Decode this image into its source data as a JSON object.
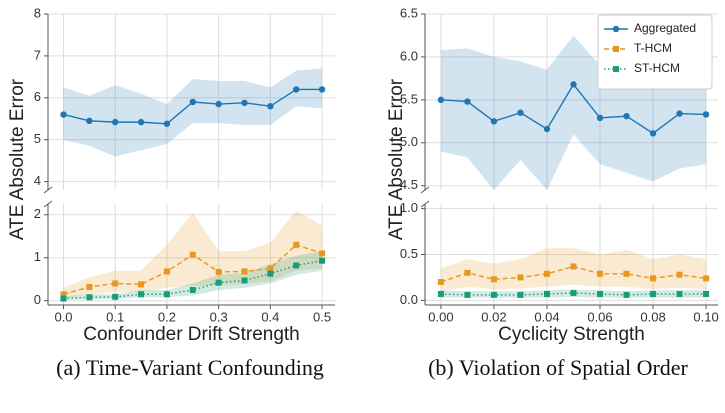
{
  "chart_data": [
    {
      "type": "line",
      "caption": "(a) Time-Variant Confounding",
      "xlabel": "Confounder Drift Strength",
      "ylabel": "ATE Absolute Error",
      "x": [
        0,
        0.05,
        0.1,
        0.15,
        0.2,
        0.25,
        0.3,
        0.35,
        0.4,
        0.45,
        0.5
      ],
      "xlim": [
        -0.03,
        0.525
      ],
      "xticks": [
        {
          "value": 0,
          "label": "0.0"
        },
        0.1,
        0.2,
        0.3,
        0.4,
        0.5
      ],
      "panels": [
        {
          "ylim": [
            3.8,
            8
          ],
          "yticks": [
            4,
            5,
            6,
            7,
            8
          ]
        },
        {
          "ylim": [
            -0.1,
            2.25
          ],
          "yticks": [
            0,
            1,
            2
          ]
        }
      ],
      "grid": true,
      "series": [
        {
          "color": "#1f77b4",
          "marker": "circle",
          "linestyle": "solid",
          "panel": 0,
          "values": [
            5.6,
            5.45,
            5.42,
            5.42,
            5.38,
            5.9,
            5.85,
            5.88,
            5.8,
            6.2,
            6.2
          ],
          "lower": [
            5.0,
            4.85,
            4.6,
            4.75,
            4.9,
            5.4,
            5.4,
            5.35,
            5.35,
            5.8,
            5.75
          ],
          "upper": [
            6.25,
            6.05,
            6.3,
            6.1,
            5.85,
            6.45,
            6.4,
            6.4,
            6.25,
            6.65,
            6.7
          ]
        },
        {
          "color": "#e8961e",
          "marker": "square",
          "linestyle": "dashed",
          "panel": 1,
          "values": [
            0.15,
            0.32,
            0.4,
            0.38,
            0.68,
            1.07,
            0.67,
            0.68,
            0.75,
            1.3,
            1.1
          ],
          "lower": [
            0.05,
            0.15,
            0.2,
            0.2,
            0.3,
            0.35,
            0.35,
            0.4,
            0.45,
            0.7,
            0.75
          ],
          "upper": [
            0.3,
            0.55,
            0.7,
            0.7,
            1.3,
            2.05,
            1.15,
            1.15,
            1.35,
            2.1,
            1.75
          ]
        },
        {
          "color": "#1a9c78",
          "marker": "square",
          "linestyle": "dotted",
          "panel": 1,
          "values": [
            0.05,
            0.08,
            0.09,
            0.15,
            0.15,
            0.25,
            0.42,
            0.47,
            0.63,
            0.82,
            0.93
          ],
          "lower": [
            0.02,
            0.03,
            0.04,
            0.08,
            0.08,
            0.12,
            0.25,
            0.3,
            0.4,
            0.6,
            0.7
          ],
          "upper": [
            0.1,
            0.15,
            0.15,
            0.25,
            0.25,
            0.4,
            0.6,
            0.65,
            0.85,
            1.05,
            1.15
          ]
        }
      ]
    },
    {
      "type": "line",
      "caption": "(b) Violation of Spatial Order",
      "xlabel": "Cyclicity Strength",
      "ylabel": "ATE Absolute Error",
      "x": [
        0,
        0.01,
        0.02,
        0.03,
        0.04,
        0.05,
        0.06,
        0.07,
        0.08,
        0.09,
        0.1
      ],
      "xlim": [
        -0.006,
        0.1045
      ],
      "xticks": [
        {
          "value": 0,
          "label": "0.00"
        },
        {
          "value": 0.02,
          "label": "0.02"
        },
        {
          "value": 0.04,
          "label": "0.04"
        },
        {
          "value": 0.06,
          "label": "0.06"
        },
        {
          "value": 0.08,
          "label": "0.08"
        },
        {
          "value": 0.1,
          "label": "0.10"
        }
      ],
      "panels": [
        {
          "ylim": [
            4.45,
            6.5
          ],
          "yticks": [
            4.5,
            {
              "value": 5,
              "label": "5.0"
            },
            5.5,
            {
              "value": 6,
              "label": "6.0"
            },
            6.5
          ]
        },
        {
          "ylim": [
            -0.05,
            1.05
          ],
          "yticks": [
            {
              "value": 0,
              "label": "0.0"
            },
            0.5,
            {
              "value": 1,
              "label": "1.0"
            }
          ]
        }
      ],
      "grid": true,
      "legend": "upper right",
      "series": [
        {
          "name": "Aggregated",
          "color": "#1f77b4",
          "marker": "circle",
          "linestyle": "solid",
          "panel": 0,
          "values": [
            5.5,
            5.48,
            5.25,
            5.35,
            5.16,
            5.68,
            5.29,
            5.31,
            5.11,
            5.34,
            5.33
          ],
          "lower": [
            4.9,
            4.83,
            4.45,
            4.8,
            4.45,
            5.1,
            4.75,
            4.65,
            4.55,
            4.7,
            4.75
          ],
          "upper": [
            6.08,
            6.1,
            6.0,
            5.95,
            5.85,
            6.25,
            5.9,
            5.95,
            5.7,
            5.95,
            5.9
          ]
        },
        {
          "name": "T-HCM",
          "color": "#e8961e",
          "marker": "square",
          "linestyle": "dashed",
          "panel": 1,
          "values": [
            0.2,
            0.3,
            0.23,
            0.25,
            0.29,
            0.37,
            0.29,
            0.29,
            0.24,
            0.28,
            0.24
          ],
          "lower": [
            0.1,
            0.15,
            0.12,
            0.13,
            0.15,
            0.17,
            0.15,
            0.15,
            0.12,
            0.14,
            0.12
          ],
          "upper": [
            0.35,
            0.45,
            0.4,
            0.45,
            0.57,
            0.57,
            0.5,
            0.55,
            0.45,
            0.5,
            0.45
          ]
        },
        {
          "name": "ST-HCM",
          "color": "#1a9c78",
          "marker": "square",
          "linestyle": "dotted",
          "panel": 1,
          "values": [
            0.07,
            0.06,
            0.06,
            0.06,
            0.07,
            0.08,
            0.07,
            0.06,
            0.07,
            0.07,
            0.07
          ],
          "lower": [
            0.03,
            0.03,
            0.03,
            0.03,
            0.03,
            0.04,
            0.03,
            0.03,
            0.03,
            0.03,
            0.03
          ],
          "upper": [
            0.11,
            0.1,
            0.1,
            0.1,
            0.11,
            0.12,
            0.11,
            0.1,
            0.11,
            0.11,
            0.11
          ]
        }
      ]
    }
  ]
}
